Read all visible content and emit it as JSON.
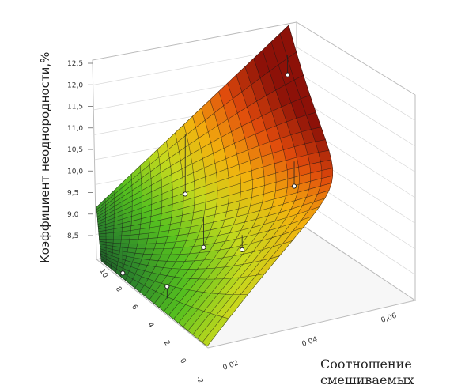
{
  "chart_data": {
    "type": "surface",
    "title": "",
    "zlabel": "Коэффициент неоднородности,%",
    "xlabel_lines": [
      "Соотношение",
      "смешиваемых"
    ],
    "ylabel": "",
    "z_ticks": [
      "8,5",
      "9,0",
      "9,5",
      "10,0",
      "10,5",
      "11,0",
      "11,5",
      "12,0",
      "12,5"
    ],
    "x_ticks": [
      "0,02",
      "0,04",
      "0,06"
    ],
    "y_ticks": [
      "10",
      "8",
      "6",
      "4",
      "2",
      "0",
      "-2"
    ],
    "zlim": [
      8.5,
      12.5
    ],
    "xlim": [
      0.02,
      0.06
    ],
    "ylim": [
      -2,
      10
    ],
    "grid": true,
    "colormap": [
      "#1e5a28",
      "#2f8a2a",
      "#56c11f",
      "#c6d91e",
      "#f3b10e",
      "#e04a0c",
      "#8c1108"
    ],
    "surface_corners": {
      "left_front": 9.3,
      "left_back": 8.5,
      "right_front": 10.4,
      "right_back": 12.6
    },
    "points": [
      {
        "x": 0.02,
        "y": 10,
        "z": 9.1
      },
      {
        "x": 0.02,
        "y": 2,
        "z": 8.3
      },
      {
        "x": 0.04,
        "y": 4,
        "z": 9.4
      },
      {
        "x": 0.06,
        "y": 10,
        "z": 12.3
      },
      {
        "x": 0.06,
        "y": 6,
        "z": 11.0
      },
      {
        "x": 0.06,
        "y": 2,
        "z": 10.1
      },
      {
        "x": 0.06,
        "y": -2,
        "z": 10.0
      }
    ]
  }
}
